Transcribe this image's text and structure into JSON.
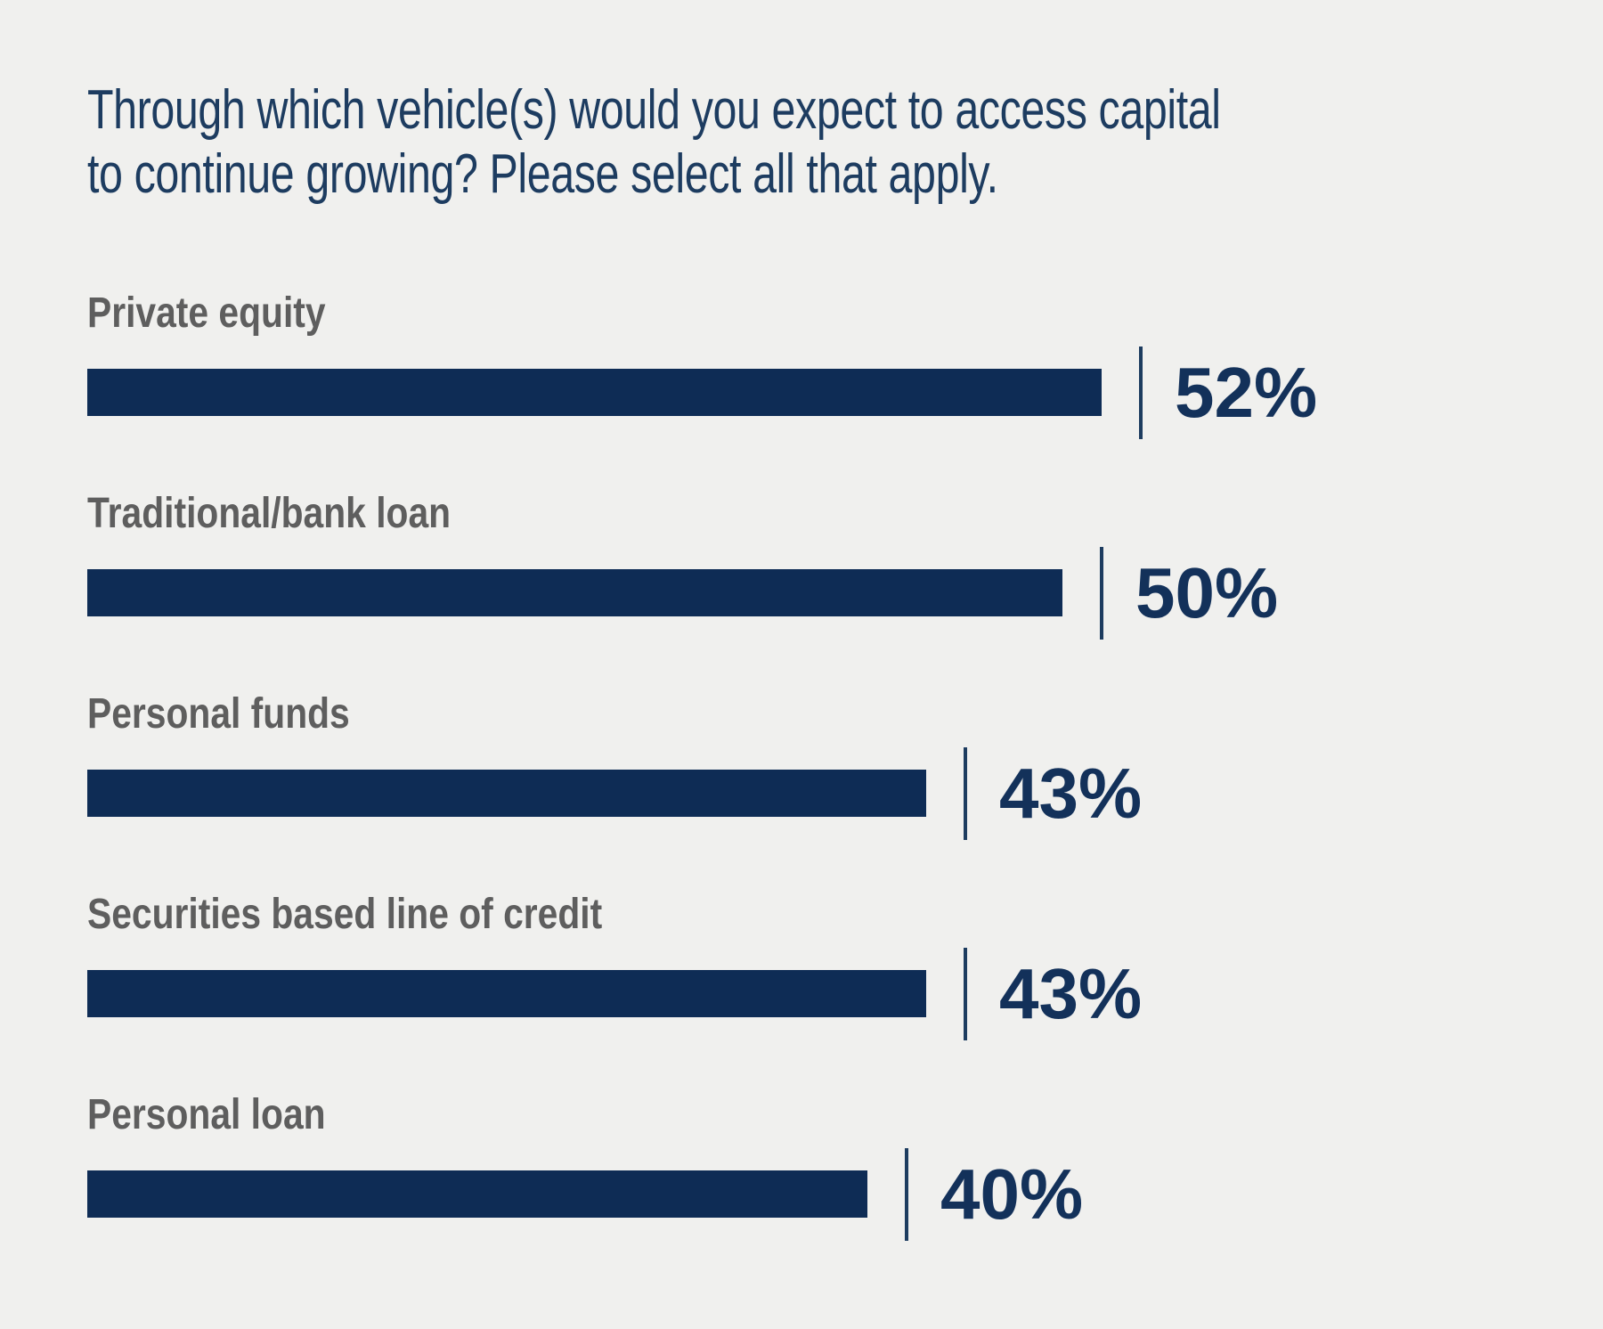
{
  "title": {
    "line1": "Through which vehicle(s) would you expect to access capital",
    "line2": "to continue growing? Please select all that apply."
  },
  "chart_data": {
    "type": "bar",
    "orientation": "horizontal",
    "title": "Through which vehicle(s) would you expect to access capital to continue growing? Please select all that apply.",
    "categories": [
      "Private equity",
      "Traditional/bank loan",
      "Personal funds",
      "Securities based line of credit",
      "Personal loan"
    ],
    "values": [
      52,
      50,
      43,
      43,
      40
    ],
    "value_labels": [
      "52%",
      "50%",
      "43%",
      "43%",
      "40%"
    ],
    "unit": "percent",
    "axis_visible": false,
    "grid": false,
    "legend": false,
    "value_label_position": "right-of-bar-after-tick-line"
  },
  "colors": {
    "background": "#f0f0ee",
    "bar": "#0e2c55",
    "tick_line": "#1d3c5f",
    "title_text": "#1d3c60",
    "category_label": "#5e5e5e",
    "value_text": "#13315a"
  }
}
